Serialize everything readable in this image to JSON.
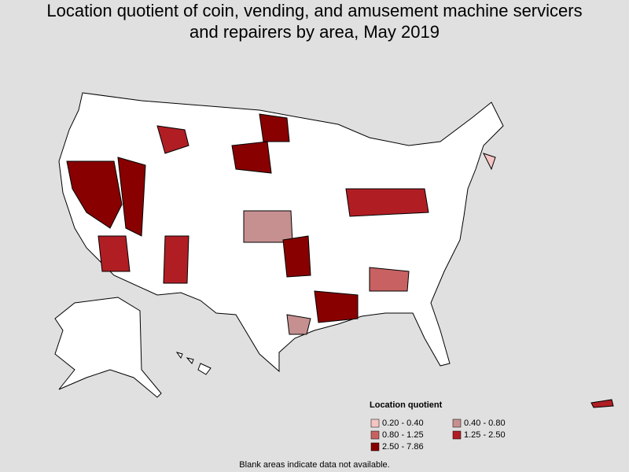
{
  "title": "Location quotient of coin, vending, and amusement machine servicers and repairers by area, May 2019",
  "legend": {
    "title": "Location quotient",
    "items": [
      {
        "label": "0.20 - 0.40",
        "color": "#f6c4c4"
      },
      {
        "label": "0.40 - 0.80",
        "color": "#c69090"
      },
      {
        "label": "0.80 - 1.25",
        "color": "#c86262"
      },
      {
        "label": "1.25 - 2.50",
        "color": "#b01e24"
      },
      {
        "label": "2.50 - 7.86",
        "color": "#880000"
      }
    ]
  },
  "footnote": "Blank areas indicate data not available."
}
